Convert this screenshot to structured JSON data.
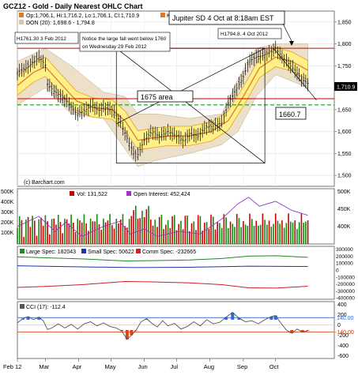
{
  "chart_data": {
    "type": "line",
    "title": "GCZ12 - Gold - Daily Nearest OHLC Chart",
    "price_panel": {
      "ohlc_label": "Op:1,706.1, Hi:1,716.2, Lo:1,706.1, Cl:1,710.9",
      "don_label": "DON (20): 1,698.6 - 1,794.8",
      "legend_letter": "K",
      "last_value_label": "1,710.9",
      "y_ticks": [
        1500,
        1550,
        1600,
        1650,
        1700,
        1750,
        1800,
        1850
      ],
      "y_tick_labels": [
        "1,500",
        "1,550",
        "1,600",
        "1,650",
        "1,700",
        "1,750",
        "1,800",
        "1,850"
      ],
      "ylim": [
        1475,
        1875
      ],
      "x_tick_labels": [
        "Feb 12",
        "Mar",
        "Apr",
        "May",
        "Jun",
        "Jul",
        "Aug",
        "Sep",
        "Oct"
      ],
      "x_tick_days": [
        0,
        26,
        57,
        87,
        118,
        148,
        179,
        210,
        240
      ],
      "x_range_days": [
        0,
        285
      ],
      "close": [
        {
          "d": 0,
          "v": 1735
        },
        {
          "d": 10,
          "v": 1748
        },
        {
          "d": 20,
          "v": 1770
        },
        {
          "d": 26,
          "v": 1752
        },
        {
          "d": 28,
          "v": 1708
        },
        {
          "d": 35,
          "v": 1690
        },
        {
          "d": 45,
          "v": 1672
        },
        {
          "d": 55,
          "v": 1640
        },
        {
          "d": 62,
          "v": 1648
        },
        {
          "d": 70,
          "v": 1660
        },
        {
          "d": 75,
          "v": 1648
        },
        {
          "d": 80,
          "v": 1655
        },
        {
          "d": 88,
          "v": 1650
        },
        {
          "d": 95,
          "v": 1625
        },
        {
          "d": 102,
          "v": 1585
        },
        {
          "d": 108,
          "v": 1550
        },
        {
          "d": 112,
          "v": 1548
        },
        {
          "d": 118,
          "v": 1580
        },
        {
          "d": 125,
          "v": 1600
        },
        {
          "d": 132,
          "v": 1590
        },
        {
          "d": 140,
          "v": 1600
        },
        {
          "d": 148,
          "v": 1590
        },
        {
          "d": 155,
          "v": 1578
        },
        {
          "d": 160,
          "v": 1595
        },
        {
          "d": 168,
          "v": 1590
        },
        {
          "d": 175,
          "v": 1610
        },
        {
          "d": 182,
          "v": 1612
        },
        {
          "d": 190,
          "v": 1620
        },
        {
          "d": 196,
          "v": 1665
        },
        {
          "d": 202,
          "v": 1690
        },
        {
          "d": 210,
          "v": 1725
        },
        {
          "d": 215,
          "v": 1760
        },
        {
          "d": 222,
          "v": 1770
        },
        {
          "d": 230,
          "v": 1775
        },
        {
          "d": 236,
          "v": 1782
        },
        {
          "d": 240,
          "v": 1790
        },
        {
          "d": 246,
          "v": 1770
        },
        {
          "d": 252,
          "v": 1755
        },
        {
          "d": 258,
          "v": 1740
        },
        {
          "d": 264,
          "v": 1720
        },
        {
          "d": 270,
          "v": 1710
        }
      ],
      "moving_average": [
        {
          "d": 0,
          "v": 1705
        },
        {
          "d": 15,
          "v": 1735
        },
        {
          "d": 26,
          "v": 1748
        },
        {
          "d": 40,
          "v": 1710
        },
        {
          "d": 55,
          "v": 1670
        },
        {
          "d": 70,
          "v": 1655
        },
        {
          "d": 88,
          "v": 1650
        },
        {
          "d": 100,
          "v": 1625
        },
        {
          "d": 112,
          "v": 1580
        },
        {
          "d": 125,
          "v": 1585
        },
        {
          "d": 140,
          "v": 1590
        },
        {
          "d": 160,
          "v": 1590
        },
        {
          "d": 180,
          "v": 1600
        },
        {
          "d": 196,
          "v": 1625
        },
        {
          "d": 210,
          "v": 1680
        },
        {
          "d": 225,
          "v": 1745
        },
        {
          "d": 240,
          "v": 1770
        },
        {
          "d": 255,
          "v": 1760
        },
        {
          "d": 270,
          "v": 1740
        }
      ],
      "donchian_upper": [
        {
          "d": 0,
          "v": 1760
        },
        {
          "d": 26,
          "v": 1790
        },
        {
          "d": 50,
          "v": 1750
        },
        {
          "d": 80,
          "v": 1690
        },
        {
          "d": 100,
          "v": 1680
        },
        {
          "d": 112,
          "v": 1640
        },
        {
          "d": 130,
          "v": 1640
        },
        {
          "d": 160,
          "v": 1630
        },
        {
          "d": 190,
          "v": 1640
        },
        {
          "d": 205,
          "v": 1720
        },
        {
          "d": 222,
          "v": 1790
        },
        {
          "d": 240,
          "v": 1800
        },
        {
          "d": 270,
          "v": 1800
        }
      ],
      "donchian_lower": [
        {
          "d": 0,
          "v": 1660
        },
        {
          "d": 26,
          "v": 1700
        },
        {
          "d": 50,
          "v": 1640
        },
        {
          "d": 80,
          "v": 1630
        },
        {
          "d": 100,
          "v": 1560
        },
        {
          "d": 112,
          "v": 1520
        },
        {
          "d": 130,
          "v": 1535
        },
        {
          "d": 160,
          "v": 1550
        },
        {
          "d": 190,
          "v": 1570
        },
        {
          "d": 205,
          "v": 1600
        },
        {
          "d": 222,
          "v": 1680
        },
        {
          "d": 240,
          "v": 1730
        },
        {
          "d": 270,
          "v": 1700
        }
      ],
      "horizontal_lines": [
        {
          "value": 1790,
          "color": "#cc0000",
          "style": "solid"
        },
        {
          "value": 1675,
          "color": "#cc0000",
          "style": "solid"
        },
        {
          "value": 1660.7,
          "color": "#008800",
          "style": "dashed"
        }
      ],
      "annotations": [
        {
          "id": "h1761",
          "text": "H1761.30  3 Feb 2012",
          "d": 2,
          "v": 1790
        },
        {
          "id": "notice_line1",
          "text": "Notice the large fall went below 1760",
          "d": 55,
          "v": 1805
        },
        {
          "id": "notice_line2",
          "text": "on Wednesday 29 Feb 2012",
          "d": 55,
          "v": 1793
        },
        {
          "id": "jupiter",
          "text": "Jupiter SD 4 Oct at 8:18am EST",
          "d": 190,
          "v": 1853
        },
        {
          "id": "h1794",
          "text": "H1794.8.  4 Oct 2012",
          "d": 200,
          "v": 1822
        },
        {
          "id": "area_1675",
          "text": "1675 area",
          "d": 102,
          "v": 1701
        },
        {
          "id": "label_1660",
          "text": "1660.7",
          "d": 225,
          "v": 1660
        },
        {
          "id": "copyright",
          "text": "(c) Barchart.com",
          "d": 2,
          "v": 1488
        }
      ],
      "box": {
        "d1": 92,
        "d2": 230,
        "v1": 1528,
        "v2": 1790
      }
    },
    "volume_panel": {
      "vol_label": "Vol: 131,522",
      "oi_label": "Open Interest: 452,424",
      "left_ticks": [
        "500K",
        "400K",
        "300K",
        "200K",
        "100K"
      ],
      "right_ticks": [
        "500K",
        "450K",
        "400K"
      ],
      "oi_series": [
        {
          "d": 0,
          "v": 430
        },
        {
          "d": 20,
          "v": 450
        },
        {
          "d": 35,
          "v": 420
        },
        {
          "d": 45,
          "v": 438
        },
        {
          "d": 60,
          "v": 410
        },
        {
          "d": 80,
          "v": 430
        },
        {
          "d": 95,
          "v": 440
        },
        {
          "d": 105,
          "v": 415
        },
        {
          "d": 118,
          "v": 425
        },
        {
          "d": 130,
          "v": 410
        },
        {
          "d": 150,
          "v": 420
        },
        {
          "d": 170,
          "v": 415
        },
        {
          "d": 190,
          "v": 445
        },
        {
          "d": 205,
          "v": 475
        },
        {
          "d": 215,
          "v": 488
        },
        {
          "d": 225,
          "v": 470
        },
        {
          "d": 240,
          "v": 480
        },
        {
          "d": 255,
          "v": 462
        },
        {
          "d": 270,
          "v": 452
        }
      ]
    },
    "cot_panel": {
      "large_label": "Large Spec: 182043",
      "small_label": "Small Spec: 50622",
      "comm_label": "Comm Spec: -232665",
      "right_ticks": [
        "300000",
        "200000",
        "100000",
        "0",
        "-100000",
        "-200000",
        "-300000",
        "-400000"
      ],
      "large_series": [
        {
          "d": 0,
          "v": 190
        },
        {
          "d": 26,
          "v": 175
        },
        {
          "d": 60,
          "v": 160
        },
        {
          "d": 100,
          "v": 130
        },
        {
          "d": 125,
          "v": 135
        },
        {
          "d": 160,
          "v": 145
        },
        {
          "d": 190,
          "v": 165
        },
        {
          "d": 215,
          "v": 200
        },
        {
          "d": 240,
          "v": 205
        },
        {
          "d": 270,
          "v": 182
        }
      ],
      "small_series": [
        {
          "d": 0,
          "v": 60
        },
        {
          "d": 60,
          "v": 45
        },
        {
          "d": 110,
          "v": 35
        },
        {
          "d": 160,
          "v": 40
        },
        {
          "d": 215,
          "v": 55
        },
        {
          "d": 270,
          "v": 51
        }
      ],
      "comm_series": [
        {
          "d": 0,
          "v": -250
        },
        {
          "d": 26,
          "v": -235
        },
        {
          "d": 60,
          "v": -210
        },
        {
          "d": 100,
          "v": -165
        },
        {
          "d": 125,
          "v": -170
        },
        {
          "d": 160,
          "v": -185
        },
        {
          "d": 190,
          "v": -210
        },
        {
          "d": 215,
          "v": -255
        },
        {
          "d": 240,
          "v": -260
        },
        {
          "d": 270,
          "v": -233
        }
      ]
    },
    "cci_panel": {
      "label": "CCI (17): -112.4",
      "right_ticks": [
        "400",
        "200",
        "0",
        "-200",
        "-400",
        "-600"
      ],
      "upper_level_label": "140.00",
      "lower_level_label": "-140.00",
      "ylim": [
        -650,
        450
      ],
      "series": [
        {
          "d": 0,
          "v": 40
        },
        {
          "d": 5,
          "v": 120
        },
        {
          "d": 10,
          "v": 160
        },
        {
          "d": 15,
          "v": 100
        },
        {
          "d": 20,
          "v": 150
        },
        {
          "d": 24,
          "v": 80
        },
        {
          "d": 28,
          "v": -90
        },
        {
          "d": 32,
          "v": -60
        },
        {
          "d": 38,
          "v": 20
        },
        {
          "d": 44,
          "v": -60
        },
        {
          "d": 50,
          "v": 10
        },
        {
          "d": 56,
          "v": -80
        },
        {
          "d": 62,
          "v": 20
        },
        {
          "d": 68,
          "v": 60
        },
        {
          "d": 74,
          "v": -20
        },
        {
          "d": 80,
          "v": 40
        },
        {
          "d": 86,
          "v": -30
        },
        {
          "d": 92,
          "v": -60
        },
        {
          "d": 97,
          "v": -120
        },
        {
          "d": 102,
          "v": -280
        },
        {
          "d": 106,
          "v": -200
        },
        {
          "d": 110,
          "v": -110
        },
        {
          "d": 115,
          "v": 60
        },
        {
          "d": 120,
          "v": 120
        },
        {
          "d": 125,
          "v": 30
        },
        {
          "d": 130,
          "v": -40
        },
        {
          "d": 135,
          "v": 80
        },
        {
          "d": 140,
          "v": -20
        },
        {
          "d": 146,
          "v": 30
        },
        {
          "d": 152,
          "v": -80
        },
        {
          "d": 158,
          "v": -30
        },
        {
          "d": 164,
          "v": 60
        },
        {
          "d": 170,
          "v": -20
        },
        {
          "d": 176,
          "v": 100
        },
        {
          "d": 182,
          "v": 20
        },
        {
          "d": 188,
          "v": 50
        },
        {
          "d": 194,
          "v": 150
        },
        {
          "d": 200,
          "v": 240
        },
        {
          "d": 206,
          "v": 130
        },
        {
          "d": 212,
          "v": 60
        },
        {
          "d": 218,
          "v": 80
        },
        {
          "d": 224,
          "v": 20
        },
        {
          "d": 230,
          "v": 100
        },
        {
          "d": 236,
          "v": 160
        },
        {
          "d": 240,
          "v": 180
        },
        {
          "d": 244,
          "v": 60
        },
        {
          "d": 250,
          "v": -100
        },
        {
          "d": 255,
          "v": -160
        },
        {
          "d": 260,
          "v": -80
        },
        {
          "d": 265,
          "v": -140
        },
        {
          "d": 270,
          "v": -112
        }
      ]
    }
  }
}
